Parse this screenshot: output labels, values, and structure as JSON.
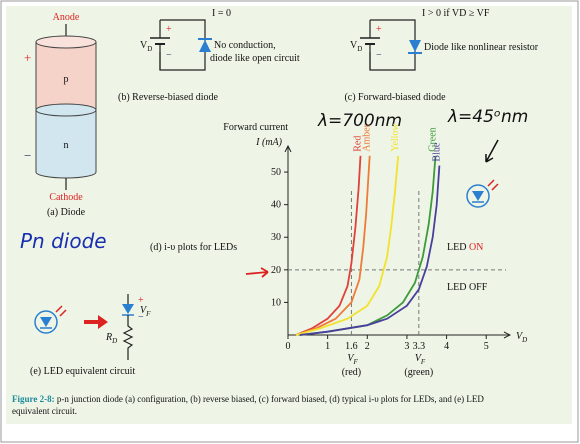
{
  "diode": {
    "anode": "Anode",
    "cathode": "Cathode",
    "p_label": "p",
    "n_label": "n",
    "plus": "+",
    "minus": "−",
    "caption": "(a) Diode"
  },
  "handwriting": {
    "pn": "Pn diode",
    "red_wavelength": "λ=700nm",
    "blue_wavelength": "λ=45ᵒnm"
  },
  "reverse": {
    "current": "I = 0",
    "source": {
      "main": "V",
      "sub": "D"
    },
    "plus": "+",
    "minus": "−",
    "note_lines": [
      "No conduction,",
      "diode like open circuit"
    ],
    "caption": "(b) Reverse-biased diode"
  },
  "forward": {
    "current": "I > 0 if VD ≥ VF",
    "source": {
      "main": "V",
      "sub": "D"
    },
    "plus": "+",
    "minus": "−",
    "note": "Diode like nonlinear resistor",
    "caption": "(c) Forward-biased diode"
  },
  "equivalent": {
    "plus": "+",
    "minus": "−",
    "vf": {
      "main": "V",
      "sub": "F"
    },
    "rd": {
      "main": "R",
      "sub": "D"
    },
    "caption": "(e) LED equivalent circuit"
  },
  "chart_data": {
    "type": "line",
    "title": "(d) i-υ plots for LEDs",
    "ylabel_lines": [
      "Forward current",
      "I (mA)"
    ],
    "xlabel": {
      "main": "V",
      "sub": "D"
    },
    "xlim": [
      0,
      5.6
    ],
    "ylim": [
      0,
      58
    ],
    "xticks": [
      0,
      1,
      2,
      3,
      4,
      5
    ],
    "yticks": [
      10,
      20,
      30,
      40,
      50
    ],
    "series": [
      {
        "name": "Red",
        "color": "#e0413a",
        "x": [
          0.2,
          0.6,
          1.0,
          1.3,
          1.5,
          1.6,
          1.7,
          1.78,
          1.83
        ],
        "values": [
          0,
          2,
          5,
          9,
          15,
          22,
          33,
          45,
          55
        ]
      },
      {
        "name": "Amber",
        "color": "#ef7b3a",
        "x": [
          0.2,
          0.7,
          1.2,
          1.6,
          1.8,
          1.9,
          1.97,
          2.02,
          2.06
        ],
        "values": [
          0,
          2,
          5,
          10,
          17,
          27,
          37,
          47,
          55
        ]
      },
      {
        "name": "Yellow",
        "color": "#f2e22c",
        "x": [
          0.2,
          0.8,
          1.5,
          2.0,
          2.3,
          2.5,
          2.6,
          2.7,
          2.78
        ],
        "values": [
          0,
          2,
          5,
          9,
          15,
          24,
          33,
          44,
          55
        ]
      },
      {
        "name": "Green",
        "color": "#3e9a3c",
        "x": [
          0.3,
          1.0,
          2.0,
          2.5,
          2.9,
          3.2,
          3.4,
          3.55,
          3.65,
          3.72
        ],
        "values": [
          0,
          1,
          3,
          6,
          10,
          16,
          24,
          34,
          44,
          55
        ]
      },
      {
        "name": "Blue",
        "color": "#4a3f9c",
        "x": [
          0.3,
          1.0,
          2.0,
          2.5,
          3.0,
          3.3,
          3.5,
          3.65,
          3.75,
          3.82
        ],
        "values": [
          0,
          1,
          3,
          5,
          9,
          14,
          21,
          30,
          40,
          52
        ]
      }
    ],
    "vf_marks": [
      {
        "value": 1.6,
        "label": "1.6",
        "symbol": {
          "main": "V",
          "sub": "F"
        },
        "note": "(red)"
      },
      {
        "value": 3.3,
        "label": "3.3",
        "symbol": {
          "main": "V",
          "sub": "F"
        },
        "note": "(green)"
      }
    ],
    "reference_current": 20,
    "region_on": {
      "prefix": "LED",
      "state": "ON"
    },
    "region_off": "LED OFF"
  },
  "caption": {
    "label": "Figure 2-8:",
    "text_lines": [
      "p-n junction diode (a) configuration, (b) reverse biased, (c) forward biased, (d) typical i-υ plots for LEDs, and (e) LED",
      "equivalent circuit."
    ]
  }
}
